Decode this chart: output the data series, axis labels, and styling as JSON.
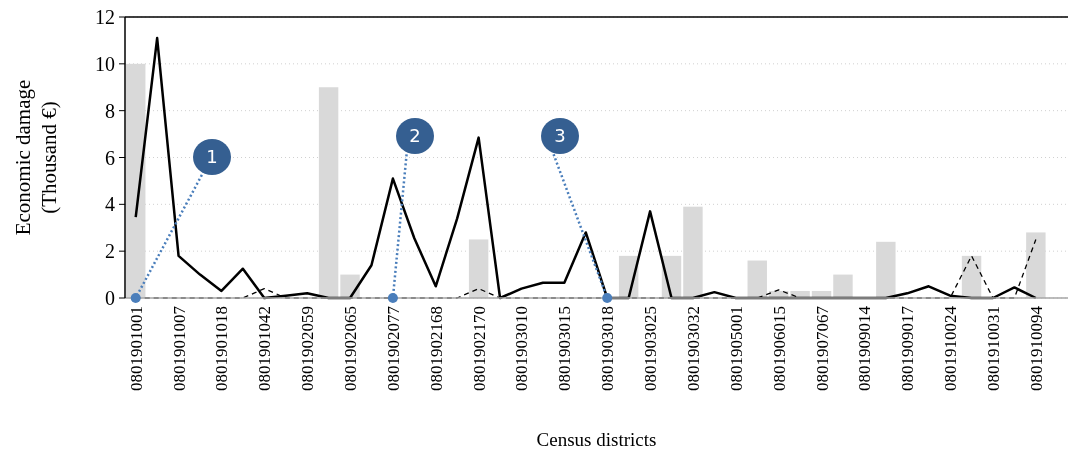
{
  "chart_data": {
    "type": "bar",
    "xlabel": "Census districts",
    "ylabel": "Economic damage (Thousand €)",
    "categories": [
      "0801901001",
      null,
      "0801901007",
      null,
      "0801901018",
      null,
      "0801901042",
      null,
      "0801902059",
      null,
      "0801902065",
      null,
      "0801902077",
      null,
      "0801902168",
      null,
      "0801902170",
      null,
      "0801903010",
      null,
      "0801903015",
      null,
      "0801903018",
      null,
      "0801903025",
      null,
      "0801903032",
      null,
      "0801905001",
      null,
      "0801906015",
      null,
      "0801907067",
      null,
      "0801909014",
      null,
      "0801909017",
      null,
      "0801910024",
      null,
      "0801910031",
      null,
      "0801910094",
      null
    ],
    "ylim": [
      0,
      12
    ],
    "yticks": [
      0,
      2,
      4,
      6,
      8,
      10,
      12
    ],
    "grid": "y",
    "series": [
      {
        "color": "#d9d9d9",
        "values": [
          10,
          null,
          null,
          null,
          null,
          null,
          null,
          null,
          null,
          9.0,
          1.0,
          null,
          null,
          null,
          null,
          null,
          2.5,
          null,
          null,
          null,
          null,
          null,
          null,
          1.8,
          null,
          1.8,
          3.9,
          null,
          null,
          1.6,
          0.3,
          0.3,
          0.3,
          1.0,
          null,
          2.4,
          null,
          null,
          null,
          1.8,
          null,
          null,
          2.8,
          null
        ]
      },
      {
        "type": "line",
        "color": "#000000",
        "line_style": "solid",
        "values": [
          3.45,
          11.1,
          1.8,
          1.0,
          0.3,
          1.25,
          0,
          0.1,
          0.2,
          0,
          0,
          1.4,
          5.1,
          2.55,
          0.5,
          3.4,
          6.85,
          0,
          0.4,
          0.65,
          0.65,
          2.8,
          0,
          0,
          3.7,
          0,
          0,
          0.25,
          0,
          0,
          0,
          0,
          0,
          0,
          0,
          0,
          0.2,
          0.5,
          0.1,
          0,
          0,
          0.45,
          0,
          null
        ]
      },
      {
        "type": "line",
        "color": "#000000",
        "line_style": "dashed",
        "values": [
          0,
          0,
          0,
          0,
          0,
          0,
          0.4,
          0,
          0,
          0,
          0,
          0,
          0,
          0,
          0,
          0,
          0.4,
          0,
          0,
          0,
          0,
          0,
          0,
          0,
          0,
          0,
          0,
          0,
          0,
          0,
          0.35,
          0,
          0,
          0,
          0,
          0,
          0,
          0,
          0,
          1.8,
          0,
          0,
          2.5,
          null
        ]
      }
    ],
    "annotations": [
      {
        "text": "1",
        "x": "0801901001",
        "y": 0
      },
      {
        "text": "2",
        "x": "0801902077",
        "y": 0
      },
      {
        "text": "3",
        "x": "0801903018",
        "y": 0
      }
    ]
  }
}
